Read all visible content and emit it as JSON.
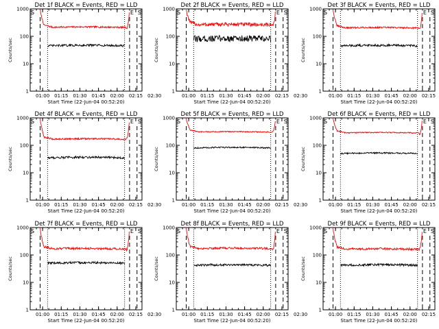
{
  "figure": {
    "title_template": "Det {det} BLACK = Events, RED = LLD",
    "xlabel": "Start Time (22-Jun-04 00:52:20)",
    "ylabel": "Counts/sec",
    "marker_E": "E",
    "marker_S": "S"
  },
  "colors": {
    "events": "#000000",
    "lld": "#ff0000",
    "axes": "#000000",
    "background": "#ffffff"
  },
  "chart_data": [
    {
      "type": "line",
      "detector": "1f",
      "title": "Det 1f BLACK = Events, RED = LLD",
      "xlabel": "Start Time (22-Jun-04 00:52:20)",
      "ylabel": "Counts/sec",
      "xlim_min": [
        -2,
        88
      ],
      "ylim": [
        1,
        1000
      ],
      "yscale": "log",
      "x_ticks_min": [
        8,
        23,
        38,
        53,
        68,
        83,
        98
      ],
      "x_tick_labels": [
        "01:00",
        "01:15",
        "01:30",
        "01:45",
        "02:00",
        "02:15",
        "02:30"
      ],
      "y_ticks": [
        1,
        10,
        100,
        1000
      ],
      "y_tick_labels": [
        "1",
        "10",
        "100",
        "1000"
      ],
      "vlines_dashed_min": [
        6,
        78,
        84
      ],
      "vlines_dotted_min": [
        12,
        74
      ],
      "markers": {
        "E": 78,
        "S": 84
      },
      "series": [
        {
          "name": "RED = LLD",
          "color": "#ff0000",
          "x_range_min": [
            6,
            78
          ],
          "spike_max": 1000,
          "baseline": 210,
          "end_value": 190,
          "noise": 0.03
        },
        {
          "name": "BLACK = Events",
          "color": "#000000",
          "x_range_min": [
            12,
            74
          ],
          "baseline": 45,
          "noise": 0.04
        }
      ]
    },
    {
      "type": "line",
      "detector": "2f",
      "title": "Det 2f BLACK = Events, RED = LLD",
      "xlabel": "Start Time (22-Jun-04 00:52:20)",
      "ylabel": "Counts/sec",
      "xlim_min": [
        -2,
        88
      ],
      "ylim": [
        1,
        1000
      ],
      "yscale": "log",
      "x_ticks_min": [
        8,
        23,
        38,
        53,
        68,
        83,
        98
      ],
      "x_tick_labels": [
        "01:00",
        "01:15",
        "01:30",
        "01:45",
        "02:00",
        "02:15",
        "02:30"
      ],
      "y_ticks": [
        1,
        10,
        100,
        1000
      ],
      "y_tick_labels": [
        "1",
        "10",
        "100",
        "1000"
      ],
      "vlines_dashed_min": [
        6,
        78,
        84
      ],
      "vlines_dotted_min": [
        12,
        74
      ],
      "markers": {
        "E": 78,
        "S": 84
      },
      "series": [
        {
          "name": "RED = LLD",
          "color": "#ff0000",
          "x_range_min": [
            6,
            78
          ],
          "spike_max": 1000,
          "baseline": 260,
          "end_value": 250,
          "noise": 0.07
        },
        {
          "name": "BLACK = Events",
          "color": "#000000",
          "x_range_min": [
            12,
            74
          ],
          "baseline": 80,
          "noise": 0.12
        }
      ]
    },
    {
      "type": "line",
      "detector": "3f",
      "title": "Det 3f BLACK = Events, RED = LLD",
      "xlabel": "Start Time (22-Jun-04 00:52:20)",
      "ylabel": "Counts/sec",
      "xlim_min": [
        -2,
        88
      ],
      "ylim": [
        1,
        1000
      ],
      "yscale": "log",
      "x_ticks_min": [
        8,
        23,
        38,
        53,
        68,
        83,
        98
      ],
      "x_tick_labels": [
        "01:00",
        "01:15",
        "01:30",
        "01:45",
        "02:00",
        "02:15",
        "02:30"
      ],
      "y_ticks": [
        1,
        10,
        100,
        1000
      ],
      "y_tick_labels": [
        "1",
        "10",
        "100",
        "1000"
      ],
      "vlines_dashed_min": [
        6,
        78,
        84
      ],
      "vlines_dotted_min": [
        12,
        74
      ],
      "markers": {
        "E": 78,
        "S": 84
      },
      "series": [
        {
          "name": "RED = LLD",
          "color": "#ff0000",
          "x_range_min": [
            6,
            78
          ],
          "spike_max": 1000,
          "baseline": 200,
          "end_value": 185,
          "noise": 0.03
        },
        {
          "name": "BLACK = Events",
          "color": "#000000",
          "x_range_min": [
            12,
            74
          ],
          "baseline": 45,
          "noise": 0.04
        }
      ]
    },
    {
      "type": "line",
      "detector": "4f",
      "title": "Det 4f BLACK = Events, RED = LLD",
      "xlabel": "Start Time (22-Jun-04 00:52:20)",
      "ylabel": "Counts/sec",
      "xlim_min": [
        -2,
        88
      ],
      "ylim": [
        1,
        1000
      ],
      "yscale": "log",
      "x_ticks_min": [
        8,
        23,
        38,
        53,
        68,
        83,
        98
      ],
      "x_tick_labels": [
        "01:00",
        "01:15",
        "01:30",
        "01:45",
        "02:00",
        "02:15",
        "02:30"
      ],
      "y_ticks": [
        1,
        10,
        100,
        1000
      ],
      "y_tick_labels": [
        "1",
        "10",
        "100",
        "1000"
      ],
      "vlines_dashed_min": [
        6,
        78,
        84
      ],
      "vlines_dotted_min": [
        12,
        74
      ],
      "markers": {
        "E": 78,
        "S": 84
      },
      "series": [
        {
          "name": "RED = LLD",
          "color": "#ff0000",
          "x_range_min": [
            6,
            78
          ],
          "spike_max": 1000,
          "baseline": 165,
          "end_value": 175,
          "noise": 0.03
        },
        {
          "name": "BLACK = Events",
          "color": "#000000",
          "x_range_min": [
            12,
            74
          ],
          "baseline": 35,
          "noise": 0.04
        }
      ]
    },
    {
      "type": "line",
      "detector": "5f",
      "title": "Det 5f BLACK = Events, RED = LLD",
      "xlabel": "Start Time (22-Jun-04 00:52:20)",
      "ylabel": "Counts/sec",
      "xlim_min": [
        -2,
        88
      ],
      "ylim": [
        1,
        1000
      ],
      "yscale": "log",
      "x_ticks_min": [
        8,
        23,
        38,
        53,
        68,
        83,
        98
      ],
      "x_tick_labels": [
        "01:00",
        "01:15",
        "01:30",
        "01:45",
        "02:00",
        "02:15",
        "02:30"
      ],
      "y_ticks": [
        1,
        10,
        100,
        1000
      ],
      "y_tick_labels": [
        "1",
        "10",
        "100",
        "1000"
      ],
      "vlines_dashed_min": [
        6,
        78,
        84
      ],
      "vlines_dotted_min": [
        12,
        74
      ],
      "markers": {
        "E": 78,
        "S": 84
      },
      "series": [
        {
          "name": "RED = LLD",
          "color": "#ff0000",
          "x_range_min": [
            6,
            78
          ],
          "spike_max": 1000,
          "baseline": 300,
          "end_value": 310,
          "noise": 0.02
        },
        {
          "name": "BLACK = Events",
          "color": "#000000",
          "x_range_min": [
            12,
            74
          ],
          "baseline": 80,
          "noise": 0.025
        }
      ]
    },
    {
      "type": "line",
      "detector": "6f",
      "title": "Det 6f BLACK = Events, RED = LLD",
      "xlabel": "Start Time (22-Jun-04 00:52:20)",
      "ylabel": "Counts/sec",
      "xlim_min": [
        -2,
        88
      ],
      "ylim": [
        1,
        1000
      ],
      "yscale": "log",
      "x_ticks_min": [
        8,
        23,
        38,
        53,
        68,
        83,
        98
      ],
      "x_tick_labels": [
        "01:00",
        "01:15",
        "01:30",
        "01:45",
        "02:00",
        "02:15",
        "02:30"
      ],
      "y_ticks": [
        1,
        10,
        100,
        1000
      ],
      "y_tick_labels": [
        "1",
        "10",
        "100",
        "1000"
      ],
      "vlines_dashed_min": [
        6,
        78,
        84
      ],
      "vlines_dotted_min": [
        12,
        74
      ],
      "markers": {
        "E": 78,
        "S": 84
      },
      "series": [
        {
          "name": "RED = LLD",
          "color": "#ff0000",
          "x_range_min": [
            6,
            78
          ],
          "spike_max": 1000,
          "baseline": 280,
          "end_value": 250,
          "noise": 0.02
        },
        {
          "name": "BLACK = Events",
          "color": "#000000",
          "x_range_min": [
            12,
            74
          ],
          "baseline": 50,
          "noise": 0.025
        }
      ]
    },
    {
      "type": "line",
      "detector": "7f",
      "title": "Det 7f BLACK = Events, RED = LLD",
      "xlabel": "Start Time (22-Jun-04 00:52:20)",
      "ylabel": "Counts/sec",
      "xlim_min": [
        -2,
        88
      ],
      "ylim": [
        1,
        1000
      ],
      "yscale": "log",
      "x_ticks_min": [
        8,
        23,
        38,
        53,
        68,
        83,
        98
      ],
      "x_tick_labels": [
        "01:00",
        "01:15",
        "01:30",
        "01:45",
        "02:00",
        "02:15",
        "02:30"
      ],
      "y_ticks": [
        1,
        10,
        100,
        1000
      ],
      "y_tick_labels": [
        "1",
        "10",
        "100",
        "1000"
      ],
      "vlines_dashed_min": [
        6,
        78,
        84
      ],
      "vlines_dotted_min": [
        12,
        74
      ],
      "markers": {
        "E": 78,
        "S": 84
      },
      "series": [
        {
          "name": "RED = LLD",
          "color": "#ff0000",
          "x_range_min": [
            6,
            78
          ],
          "spike_max": 1000,
          "baseline": 165,
          "end_value": 150,
          "noise": 0.04
        },
        {
          "name": "BLACK = Events",
          "color": "#000000",
          "x_range_min": [
            12,
            74
          ],
          "baseline": 50,
          "noise": 0.04
        }
      ]
    },
    {
      "type": "line",
      "detector": "8f",
      "title": "Det 8f BLACK = Events, RED = LLD",
      "xlabel": "Start Time (22-Jun-04 00:52:20)",
      "ylabel": "Counts/sec",
      "xlim_min": [
        -2,
        88
      ],
      "ylim": [
        1,
        1000
      ],
      "yscale": "log",
      "x_ticks_min": [
        8,
        23,
        38,
        53,
        68,
        83,
        98
      ],
      "x_tick_labels": [
        "01:00",
        "01:15",
        "01:30",
        "01:45",
        "02:00",
        "02:15",
        "02:30"
      ],
      "y_ticks": [
        1,
        10,
        100,
        1000
      ],
      "y_tick_labels": [
        "1",
        "10",
        "100",
        "1000"
      ],
      "vlines_dashed_min": [
        6,
        78,
        84
      ],
      "vlines_dotted_min": [
        12,
        74
      ],
      "markers": {
        "E": 78,
        "S": 84
      },
      "series": [
        {
          "name": "RED = LLD",
          "color": "#ff0000",
          "x_range_min": [
            6,
            78
          ],
          "spike_max": 1000,
          "baseline": 170,
          "end_value": 160,
          "noise": 0.04
        },
        {
          "name": "BLACK = Events",
          "color": "#000000",
          "x_range_min": [
            12,
            74
          ],
          "baseline": 42,
          "noise": 0.04
        }
      ]
    },
    {
      "type": "line",
      "detector": "9f",
      "title": "Det 9f BLACK = Events, RED = LLD",
      "xlabel": "Start Time (22-Jun-04 00:52:20)",
      "ylabel": "Counts/sec",
      "xlim_min": [
        -2,
        88
      ],
      "ylim": [
        1,
        1000
      ],
      "yscale": "log",
      "x_ticks_min": [
        8,
        23,
        38,
        53,
        68,
        83,
        98
      ],
      "x_tick_labels": [
        "01:00",
        "01:15",
        "01:30",
        "01:45",
        "02:00",
        "02:15",
        "02:30"
      ],
      "y_ticks": [
        1,
        10,
        100,
        1000
      ],
      "y_tick_labels": [
        "1",
        "10",
        "100",
        "1000"
      ],
      "vlines_dashed_min": [
        6,
        78,
        84
      ],
      "vlines_dotted_min": [
        12,
        74
      ],
      "markers": {
        "E": 78,
        "S": 84
      },
      "series": [
        {
          "name": "RED = LLD",
          "color": "#ff0000",
          "x_range_min": [
            6,
            78
          ],
          "spike_max": 1000,
          "baseline": 160,
          "end_value": 175,
          "noise": 0.04
        },
        {
          "name": "BLACK = Events",
          "color": "#000000",
          "x_range_min": [
            12,
            74
          ],
          "baseline": 42,
          "noise": 0.04
        }
      ]
    }
  ]
}
